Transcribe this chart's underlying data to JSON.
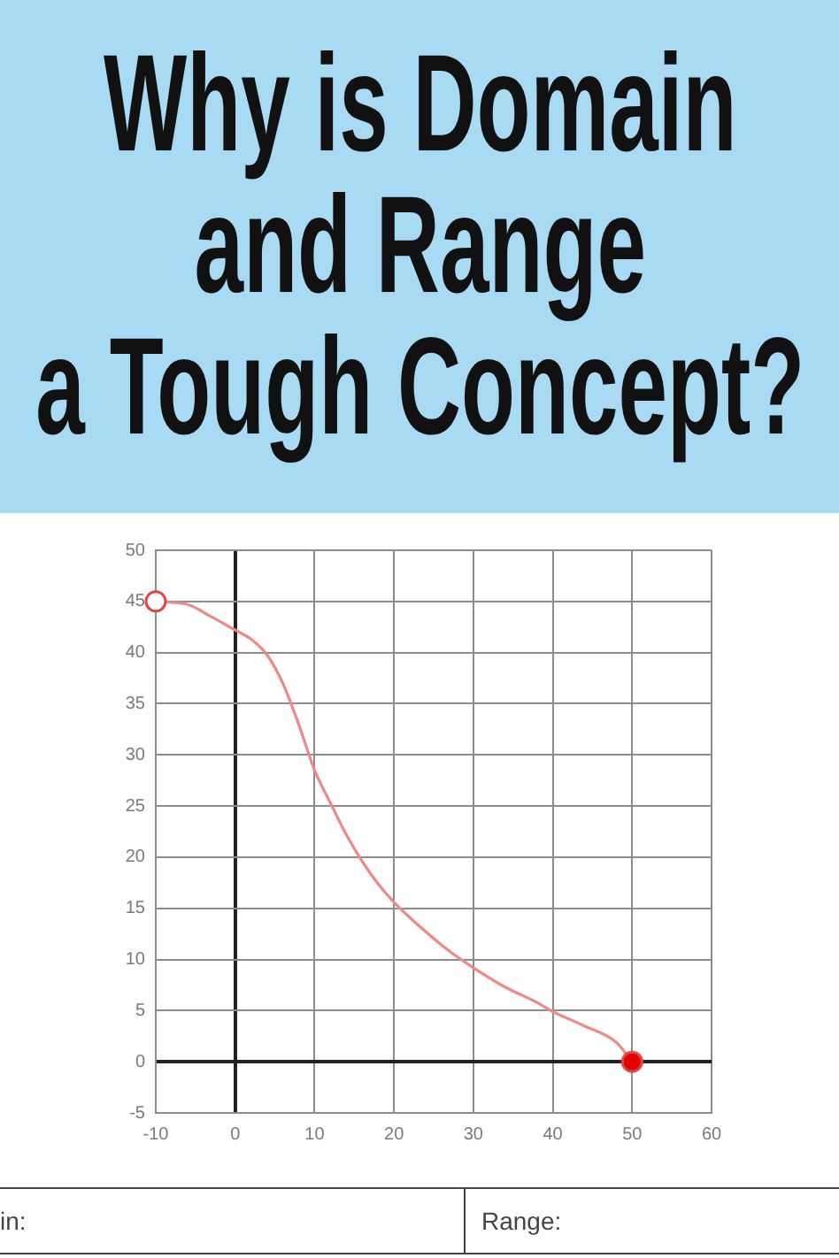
{
  "chart_data": {
    "type": "line",
    "title": "Why is Domain\nand Range\na Tough Concept?",
    "xlim": [
      -10,
      60
    ],
    "xticks": [
      -10,
      0,
      10,
      20,
      30,
      40,
      50,
      60
    ],
    "ylim": [
      -5,
      50
    ],
    "yticks": [
      -5,
      0,
      5,
      10,
      15,
      20,
      25,
      30,
      35,
      40,
      45,
      50
    ],
    "grid": true,
    "series": [
      {
        "color": "#f08888",
        "marker": "none",
        "x": [
          -10,
          -6,
          -3,
          0,
          2,
          4,
          6,
          8,
          10,
          12,
          14,
          16,
          18,
          20,
          23,
          27,
          30,
          34,
          38,
          40,
          44,
          48,
          50
        ],
        "values": [
          45,
          44.7,
          43.5,
          42.2,
          41.3,
          39.8,
          37,
          33,
          28.5,
          25.3,
          22.2,
          19.6,
          17.4,
          15.6,
          13.4,
          10.8,
          9.2,
          7.3,
          5.8,
          4.9,
          3.5,
          1.9,
          0
        ]
      },
      {
        "type": "scatter",
        "color": "#e04848",
        "colors": [
          "#ffffff",
          "#e00000"
        ],
        "marker": "circle",
        "x": [
          -10,
          50
        ],
        "values": [
          45,
          0
        ]
      }
    ],
    "annotations": [
      "in:",
      "Range:"
    ]
  }
}
